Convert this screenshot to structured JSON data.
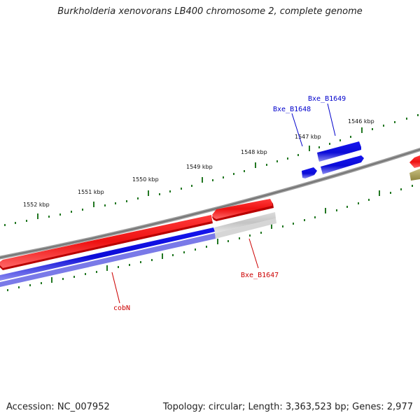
{
  "title": "Burkholderia xenovorans LB400 chromosome 2, complete genome",
  "accession": "Accession: NC_007952",
  "summary": "Topology: circular; Length: 3,363,523 bp; Genes: 2,977",
  "kbp_labels": [
    "1546 kbp",
    "1547 kbp",
    "1548 kbp",
    "1549 kbp",
    "1550 kbp",
    "1551 kbp",
    "1552 kbp"
  ],
  "gene_labels": [
    "Bxe_B1649",
    "Bxe_B1648",
    "Bxe_B1647",
    "cobN"
  ],
  "colors": {
    "backbone": "#808080",
    "tick": "#227722",
    "forward_gene": "#ee1111",
    "reverse_gene": "#1111dd",
    "pseudo_gene": "#c4c4c4",
    "label_red": "#cc0000",
    "label_blue": "#0000cc"
  }
}
